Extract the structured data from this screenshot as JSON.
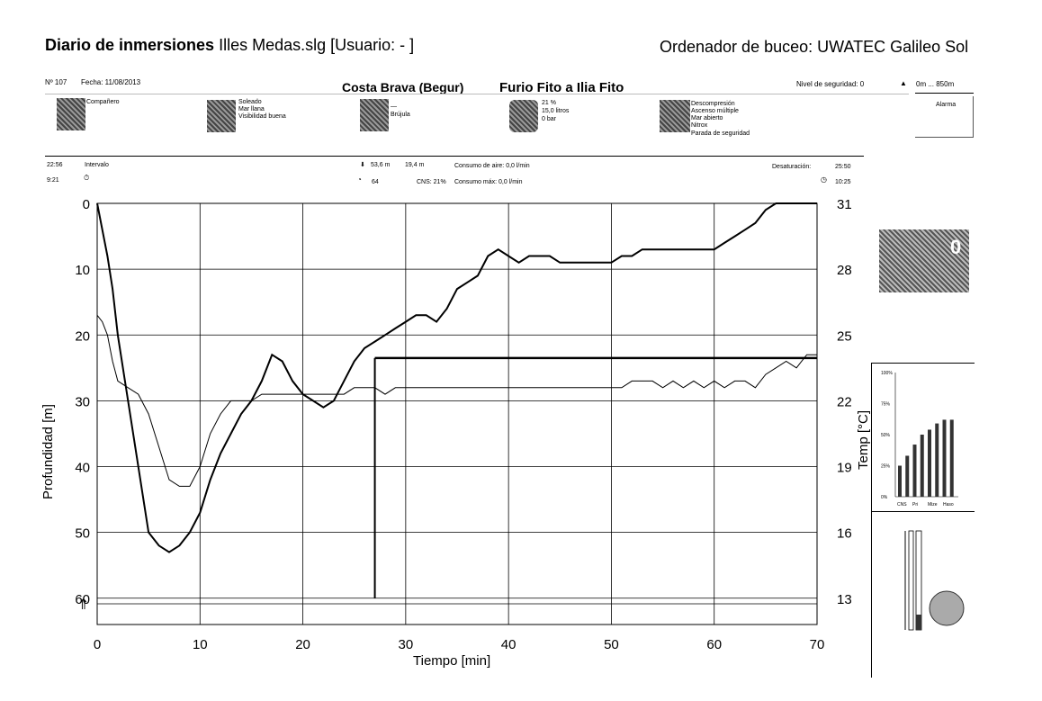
{
  "header": {
    "title_bold": "Diario de inmersiones",
    "title_rest": " Illes Medas.slg  [Usuario:  - ]",
    "computer": "Ordenador de buceo: UWATEC Galileo Sol"
  },
  "info": {
    "dive_number": "Nº 107",
    "date": "Fecha:  11/08/2013",
    "site": "Costa Brava (Begur)",
    "dive_name": "Furio Fito a Ilia Fito",
    "safety_level": "Nivel de seguridad: 0",
    "altitude": "0m ... 850m",
    "alarm": "Alarma",
    "companion": "Compañero",
    "weather": [
      "Soleado",
      "Mar llana",
      "Visibilidad buena"
    ],
    "compass_dash": "—",
    "compass": "Brújula",
    "gas": [
      "21 %",
      "15,0 litros",
      "0 bar"
    ],
    "dive_flags": [
      "Descompresión",
      "Ascenso múltiple",
      "Mar abierto",
      "Nitrox",
      "Parada de seguridad"
    ]
  },
  "stats": {
    "time_start": "22:56",
    "interval_label": "Intervalo",
    "time_end": "9:21",
    "max_depth": "53,6 m",
    "avg_depth": "19,4 m",
    "air_consumption": "Consumo de aire:  0,0 l/min",
    "dive_time": "64",
    "cns": "CNS: 21%",
    "max_consumption": "Consumo máx:  0,0 l/min",
    "desaturation_label": "Desaturación:",
    "desaturation_value": "25:50",
    "surface_time": "10:25"
  },
  "chart_data": {
    "type": "line",
    "xlabel": "Tiempo [min]",
    "ylabel": "Profundidad [m]",
    "y2label": "Temp [°C]",
    "xlim": [
      0,
      70
    ],
    "ylim": [
      0,
      64
    ],
    "x_ticks": [
      0,
      10,
      20,
      30,
      40,
      50,
      60,
      70
    ],
    "y_ticks": [
      0,
      10,
      20,
      30,
      40,
      50,
      60
    ],
    "temp_ticks": [
      31,
      28,
      25,
      22,
      19,
      16,
      13
    ],
    "grid": true,
    "series": [
      {
        "x": [
          0,
          0.5,
          1,
          1.5,
          2,
          3,
          4,
          5,
          6,
          7,
          8,
          9,
          10,
          11,
          12,
          13,
          14,
          15,
          16,
          17,
          18,
          19,
          20,
          21,
          22,
          23,
          24,
          25,
          26,
          27,
          28,
          29,
          30,
          31,
          32,
          33,
          34,
          35,
          36,
          37,
          38,
          39,
          40,
          41,
          42,
          43,
          44,
          45,
          46,
          47,
          48,
          49,
          50,
          51,
          52,
          53,
          54,
          55,
          56,
          57,
          58,
          59,
          60,
          61,
          62,
          63,
          64,
          65,
          66,
          67,
          68,
          69,
          70
        ],
        "values": [
          0,
          4,
          8,
          13,
          20,
          30,
          40,
          50,
          52,
          53,
          52,
          50,
          47,
          42,
          38,
          35,
          32,
          30,
          27,
          23,
          24,
          27,
          29,
          30,
          31,
          30,
          27,
          24,
          22,
          21,
          20,
          19,
          18,
          17,
          17,
          18,
          16,
          13,
          12,
          11,
          8,
          7,
          8,
          9,
          8,
          8,
          8,
          9,
          9,
          9,
          9,
          9,
          9,
          8,
          8,
          7,
          7,
          7,
          7,
          7,
          7,
          7,
          7,
          6,
          5,
          4,
          3,
          1,
          0,
          0,
          0,
          0,
          0
        ]
      },
      {
        "x": [
          0,
          0.5,
          1,
          1.5,
          2,
          3,
          4,
          5,
          6,
          7,
          8,
          9,
          10,
          11,
          12,
          13,
          14,
          15,
          16,
          17,
          18,
          19,
          20,
          21,
          22,
          23,
          24,
          25,
          26,
          27,
          28,
          29,
          30,
          31,
          32,
          33,
          34,
          35,
          36,
          37,
          38,
          39,
          40,
          41,
          42,
          43,
          44,
          45,
          46,
          47,
          48,
          49,
          50,
          51,
          52,
          53,
          54,
          55,
          56,
          57,
          58,
          59,
          60,
          61,
          62,
          63,
          64,
          65,
          66,
          67,
          68,
          69,
          70
        ],
        "values": [
          17,
          18,
          20,
          24,
          27,
          28,
          29,
          32,
          37,
          42,
          43,
          43,
          40,
          35,
          32,
          30,
          30,
          30,
          29,
          29,
          29,
          29,
          29,
          29,
          29,
          29,
          29,
          28,
          28,
          28,
          29,
          28,
          28,
          28,
          28,
          28,
          28,
          28,
          28,
          28,
          28,
          28,
          28,
          28,
          28,
          28,
          28,
          28,
          28,
          28,
          28,
          28,
          28,
          28,
          27,
          27,
          27,
          28,
          27,
          28,
          27,
          28,
          27,
          28,
          27,
          27,
          28,
          26,
          25,
          24,
          25,
          23,
          23
        ]
      }
    ],
    "deco_line": {
      "x": 27,
      "depth_from": 60,
      "depth_to": 23.5,
      "x_end": 70
    }
  },
  "side_panel": {
    "thumb_digit": "0",
    "bar_chart": {
      "y_ticks": [
        "100%",
        "75%",
        "50%",
        "25%",
        "0%"
      ],
      "labels": [
        "CNS",
        "Pri",
        "Mize",
        "Haso"
      ],
      "values": [
        0.25,
        0.33,
        0.42,
        0.5,
        0.54,
        0.59,
        0.62,
        0.62
      ]
    }
  },
  "colors": {
    "line": "#000000",
    "grid": "#000000",
    "background": "#ffffff"
  }
}
